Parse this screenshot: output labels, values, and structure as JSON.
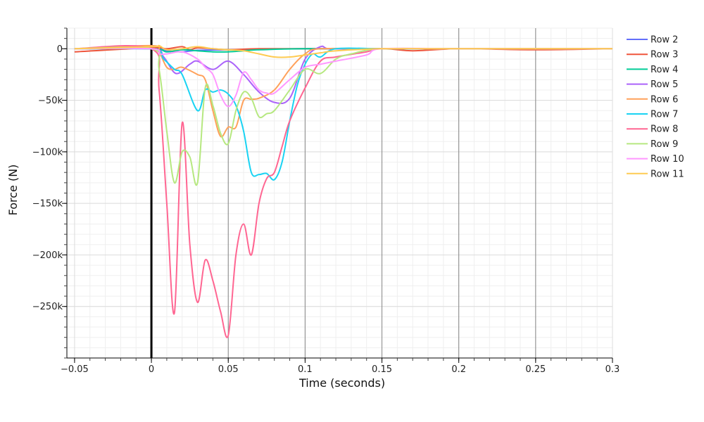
{
  "chart_data": {
    "type": "line",
    "xlabel": "Time (seconds)",
    "ylabel": "Force (N)",
    "xlim": [
      -0.055,
      0.3
    ],
    "ylim": [
      -300000,
      20000
    ],
    "x_ticks": [
      {
        "value": -0.05,
        "label": "−0.05"
      },
      {
        "value": 0,
        "label": "0"
      },
      {
        "value": 0.05,
        "label": "0.05"
      },
      {
        "value": 0.1,
        "label": "0.1"
      },
      {
        "value": 0.15,
        "label": "0.15"
      },
      {
        "value": 0.2,
        "label": "0.2"
      },
      {
        "value": 0.25,
        "label": "0.25"
      },
      {
        "value": 0.3,
        "label": "0.3"
      }
    ],
    "y_ticks": [
      {
        "value": 0,
        "label": "0"
      },
      {
        "value": -50000,
        "label": "−50k"
      },
      {
        "value": -100000,
        "label": "−100k"
      },
      {
        "value": -150000,
        "label": "−150k"
      },
      {
        "value": -200000,
        "label": "−200k"
      },
      {
        "value": -250000,
        "label": "−250k"
      }
    ],
    "grid": true,
    "legend_position": "top-right",
    "vertical_markers": [
      {
        "x": 0,
        "color": "#000000",
        "style": "thick"
      },
      {
        "x": 0.05,
        "color": "#888888",
        "style": "thin"
      },
      {
        "x": 0.1,
        "color": "#888888",
        "style": "thin"
      },
      {
        "x": 0.15,
        "color": "#888888",
        "style": "thin"
      },
      {
        "x": 0.2,
        "color": "#888888",
        "style": "thin"
      },
      {
        "x": 0.25,
        "color": "#888888",
        "style": "thin"
      }
    ],
    "series": [
      {
        "name": "Row 2",
        "color": "#636efa",
        "x": [
          -0.05,
          0,
          0.01,
          0.02,
          0.03,
          0.05,
          0.07,
          0.1,
          0.15,
          0.2,
          0.25,
          0.3
        ],
        "y": [
          0,
          0,
          -2000,
          -3000,
          -1500,
          -1000,
          -500,
          0,
          0,
          0,
          0,
          0
        ]
      },
      {
        "name": "Row 3",
        "color": "#ef553b",
        "x": [
          -0.05,
          0,
          0.01,
          0.02,
          0.025,
          0.03,
          0.04,
          0.05,
          0.07,
          0.1,
          0.15,
          0.17,
          0.2,
          0.25,
          0.3
        ],
        "y": [
          -3000,
          1000,
          0,
          2000,
          -1000,
          1000,
          0,
          -1000,
          0,
          0,
          0,
          -2000,
          0,
          -1000,
          0
        ]
      },
      {
        "name": "Row 4",
        "color": "#00cc96",
        "x": [
          -0.05,
          0,
          0.01,
          0.02,
          0.03,
          0.04,
          0.05,
          0.06,
          0.07,
          0.1,
          0.15,
          0.2,
          0.25,
          0.3
        ],
        "y": [
          0,
          0,
          -3000,
          -1000,
          -2000,
          -3000,
          -3000,
          -2000,
          -1000,
          0,
          0,
          0,
          0,
          0
        ]
      },
      {
        "name": "Row 5",
        "color": "#ab63fa",
        "x": [
          -0.05,
          0,
          0.008,
          0.016,
          0.025,
          0.03,
          0.04,
          0.05,
          0.06,
          0.07,
          0.08,
          0.09,
          0.1,
          0.11,
          0.115,
          0.13,
          0.15,
          0.2,
          0.3
        ],
        "y": [
          0,
          0,
          -8000,
          -24000,
          -15000,
          -12000,
          -20000,
          -12000,
          -25000,
          -42000,
          -52000,
          -48000,
          -10000,
          2000,
          0,
          0,
          0,
          0,
          0
        ]
      },
      {
        "name": "Row 6",
        "color": "#ffa15a",
        "x": [
          -0.05,
          0,
          0.005,
          0.01,
          0.015,
          0.02,
          0.03,
          0.035,
          0.04,
          0.045,
          0.05,
          0.055,
          0.06,
          0.065,
          0.07,
          0.08,
          0.09,
          0.1,
          0.11,
          0.15,
          0.2,
          0.25,
          0.3
        ],
        "y": [
          0,
          3000,
          -3000,
          -18000,
          -20000,
          -18000,
          -25000,
          -30000,
          -60000,
          -85000,
          -76000,
          -76000,
          -50000,
          -49000,
          -48000,
          -40000,
          -20000,
          -5000,
          0,
          0,
          0,
          0,
          0
        ]
      },
      {
        "name": "Row 7",
        "color": "#19d3f3",
        "x": [
          -0.05,
          0,
          0.008,
          0.015,
          0.02,
          0.03,
          0.035,
          0.04,
          0.045,
          0.05,
          0.055,
          0.06,
          0.065,
          0.07,
          0.075,
          0.08,
          0.085,
          0.09,
          0.095,
          0.1,
          0.105,
          0.11,
          0.12,
          0.15,
          0.2,
          0.3
        ],
        "y": [
          0,
          0,
          -10000,
          -20000,
          -25000,
          -60000,
          -40000,
          -42000,
          -40000,
          -44000,
          -55000,
          -80000,
          -120000,
          -122000,
          -121000,
          -127000,
          -110000,
          -70000,
          -35000,
          -15000,
          -5000,
          -8000,
          0,
          0,
          0,
          0
        ]
      },
      {
        "name": "Row 8",
        "color": "#ff6692",
        "x": [
          -0.05,
          0,
          0.005,
          0.01,
          0.015,
          0.02,
          0.025,
          0.03,
          0.035,
          0.04,
          0.045,
          0.05,
          0.055,
          0.06,
          0.065,
          0.07,
          0.075,
          0.08,
          0.085,
          0.09,
          0.1,
          0.11,
          0.12,
          0.14,
          0.15,
          0.2,
          0.3
        ],
        "y": [
          0,
          0,
          -40000,
          -150000,
          -256000,
          -72000,
          -190000,
          -246000,
          -205000,
          -225000,
          -255000,
          -278000,
          -200000,
          -170000,
          -200000,
          -150000,
          -126000,
          -120000,
          -95000,
          -70000,
          -38000,
          -12000,
          -8000,
          -3000,
          0,
          0,
          0
        ]
      },
      {
        "name": "Row 9",
        "color": "#b6e880",
        "x": [
          -0.05,
          0,
          0.005,
          0.01,
          0.015,
          0.02,
          0.025,
          0.03,
          0.035,
          0.04,
          0.045,
          0.05,
          0.055,
          0.06,
          0.065,
          0.07,
          0.075,
          0.08,
          0.09,
          0.1,
          0.11,
          0.12,
          0.13,
          0.15,
          0.2,
          0.3
        ],
        "y": [
          0,
          0,
          -20000,
          -80000,
          -130000,
          -100000,
          -105000,
          -130000,
          -38000,
          -55000,
          -82000,
          -92000,
          -60000,
          -42000,
          -48000,
          -66000,
          -63000,
          -60000,
          -40000,
          -20000,
          -24000,
          -10000,
          -5000,
          0,
          0,
          0
        ]
      },
      {
        "name": "Row 10",
        "color": "#ff97ff",
        "x": [
          -0.05,
          0,
          0.005,
          0.01,
          0.02,
          0.03,
          0.035,
          0.04,
          0.045,
          0.05,
          0.055,
          0.06,
          0.065,
          0.07,
          0.075,
          0.08,
          0.09,
          0.1,
          0.11,
          0.12,
          0.14,
          0.15,
          0.2,
          0.3
        ],
        "y": [
          0,
          0,
          -5000,
          -5000,
          -3000,
          -10000,
          -18000,
          -25000,
          -45000,
          -56000,
          -45000,
          -23000,
          -30000,
          -40000,
          -43000,
          -43000,
          -30000,
          -18000,
          -15000,
          -12000,
          -6000,
          0,
          0,
          0
        ]
      },
      {
        "name": "Row 11",
        "color": "#fecb52",
        "x": [
          -0.05,
          0,
          0.005,
          0.01,
          0.02,
          0.03,
          0.04,
          0.05,
          0.06,
          0.07,
          0.08,
          0.09,
          0.1,
          0.11,
          0.12,
          0.15,
          0.2,
          0.25,
          0.3
        ],
        "y": [
          0,
          2000,
          3000,
          -1000,
          0,
          2000,
          0,
          -1000,
          -2000,
          -5000,
          -8000,
          -8000,
          -6000,
          -4000,
          -2000,
          0,
          0,
          0,
          0
        ]
      }
    ]
  }
}
